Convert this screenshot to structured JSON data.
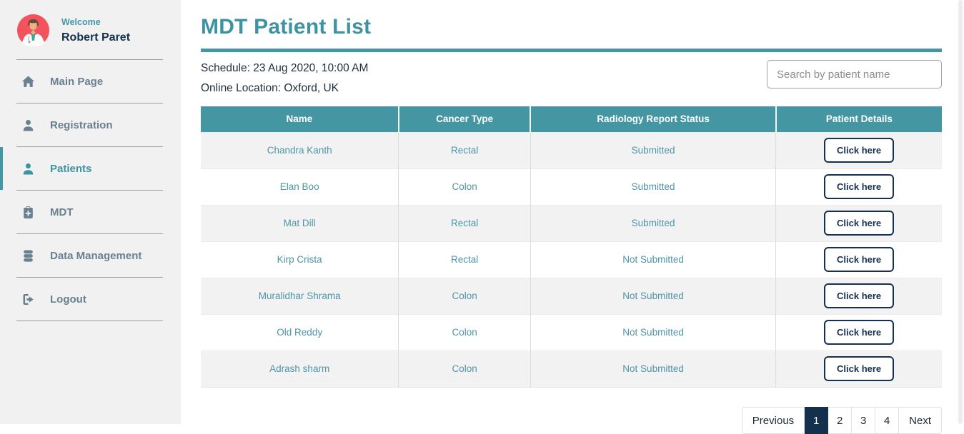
{
  "sidebar": {
    "welcome_label": "Welcome",
    "user_name": "Robert Paret",
    "items": [
      {
        "label": "Main Page",
        "icon": "home-icon",
        "active": false
      },
      {
        "label": "Registration",
        "icon": "user-icon",
        "active": false
      },
      {
        "label": "Patients",
        "icon": "user-icon",
        "active": true
      },
      {
        "label": "MDT",
        "icon": "clipboard-plus-icon",
        "active": false
      },
      {
        "label": "Data Management",
        "icon": "database-icon",
        "active": false
      },
      {
        "label": "Logout",
        "icon": "logout-icon",
        "active": false
      }
    ]
  },
  "header": {
    "title": "MDT Patient List"
  },
  "meeting": {
    "schedule_text": "Schedule: 23 Aug 2020, 10:00 AM",
    "location_text": "Online Location: Oxford, UK"
  },
  "search": {
    "placeholder": "Search by patient name"
  },
  "table": {
    "columns": [
      "Name",
      "Cancer Type",
      "Radiology Report Status",
      "Patient Details"
    ],
    "button_label": "Click here",
    "rows": [
      {
        "name": "Chandra Kanth",
        "cancer_type": "Rectal",
        "report_status": "Submitted"
      },
      {
        "name": "Elan Boo",
        "cancer_type": "Colon",
        "report_status": "Submitted"
      },
      {
        "name": "Mat Dill",
        "cancer_type": "Rectal",
        "report_status": "Submitted"
      },
      {
        "name": "Kirp Crista",
        "cancer_type": "Rectal",
        "report_status": "Not Submitted"
      },
      {
        "name": "Muralidhar Shrama",
        "cancer_type": "Colon",
        "report_status": "Not Submitted"
      },
      {
        "name": "Old Reddy",
        "cancer_type": "Colon",
        "report_status": "Not Submitted"
      },
      {
        "name": "Adrash sharm",
        "cancer_type": "Colon",
        "report_status": "Not Submitted"
      }
    ]
  },
  "pagination": {
    "previous_label": "Previous",
    "pages": [
      "1",
      "2",
      "3",
      "4"
    ],
    "active_page": "1",
    "next_label": "Next"
  },
  "colors": {
    "teal_primary": "#4496a3",
    "heading_teal": "#3e93a3",
    "dark_navy": "#16304f",
    "status_orange": "#ee7c3d",
    "row_stripe": "#f2f2f2",
    "sidebar_bg": "#f1f1f2",
    "avatar_red": "#f4525d"
  }
}
